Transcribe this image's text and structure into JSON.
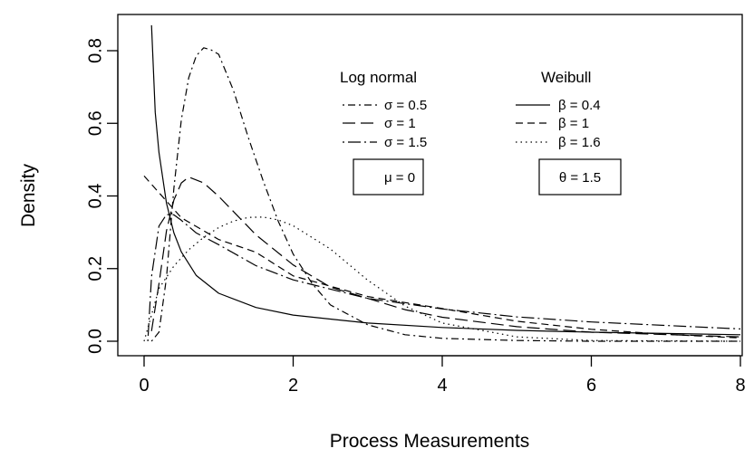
{
  "chart_data": {
    "type": "line",
    "xlabel": "Process Measurements",
    "ylabel": "Density",
    "xlim": [
      0,
      8
    ],
    "ylim": [
      0,
      0.85
    ],
    "xticks": [
      "0",
      "2",
      "4",
      "6",
      "8"
    ],
    "yticks": [
      "0.0",
      "0.2",
      "0.4",
      "0.6",
      "0.8"
    ],
    "grid": false,
    "legends": {
      "lognormal": {
        "title": "Log normal",
        "entries": [
          "σ = 0.5",
          "σ = 1",
          "σ = 1.5"
        ],
        "param_box": "μ = 0"
      },
      "weibull": {
        "title": "Weibull",
        "entries": [
          "β = 0.4",
          "β = 1",
          "β = 1.6"
        ],
        "param_box": "θ = 1.5"
      }
    },
    "series": [
      {
        "family": "lognormal",
        "dash": "dot-dash",
        "x": [
          0.1,
          0.2,
          0.3,
          0.4,
          0.5,
          0.6,
          0.7,
          0.8,
          0.9,
          1.0,
          1.2,
          1.4,
          1.6,
          1.8,
          2.0,
          2.25,
          2.5,
          3.0,
          3.5,
          4.0,
          5.0,
          6.0,
          8.0
        ],
        "y": [
          0.0,
          0.025,
          0.175,
          0.422,
          0.61,
          0.726,
          0.786,
          0.808,
          0.802,
          0.79,
          0.69,
          0.56,
          0.44,
          0.33,
          0.24,
          0.16,
          0.1,
          0.045,
          0.018,
          0.008,
          0.002,
          0.0,
          0.0
        ]
      },
      {
        "family": "lognormal",
        "dash": "long-dash",
        "x": [
          0.1,
          0.2,
          0.3,
          0.4,
          0.5,
          0.6,
          0.8,
          1.0,
          1.2,
          1.5,
          2.0,
          2.5,
          3.0,
          3.5,
          4.0,
          5.0,
          6.0,
          8.0
        ],
        "y": [
          0.028,
          0.158,
          0.304,
          0.389,
          0.436,
          0.452,
          0.436,
          0.399,
          0.357,
          0.293,
          0.21,
          0.149,
          0.118,
          0.087,
          0.066,
          0.04,
          0.025,
          0.012
        ]
      },
      {
        "family": "lognormal",
        "dash": "dot-long-dash",
        "x": [
          0.05,
          0.1,
          0.2,
          0.3,
          0.4,
          0.5,
          0.7,
          1.0,
          1.5,
          2.0,
          3.0,
          4.0,
          5.0,
          6.0,
          8.0
        ],
        "y": [
          0.0,
          0.178,
          0.317,
          0.349,
          0.348,
          0.333,
          0.298,
          0.266,
          0.208,
          0.169,
          0.118,
          0.089,
          0.067,
          0.053,
          0.034
        ]
      },
      {
        "family": "weibull",
        "dash": "solid",
        "x": [
          0.1,
          0.15,
          0.2,
          0.3,
          0.4,
          0.5,
          0.7,
          1.0,
          1.5,
          2.0,
          3.0,
          4.0,
          5.0,
          6.0,
          8.0
        ],
        "y": [
          0.87,
          0.63,
          0.52,
          0.38,
          0.298,
          0.246,
          0.181,
          0.132,
          0.093,
          0.072,
          0.05,
          0.038,
          0.03,
          0.025,
          0.018
        ]
      },
      {
        "family": "weibull",
        "dash": "dashed",
        "x": [
          0.0,
          0.5,
          1.0,
          1.5,
          2.0,
          3.0,
          4.0,
          5.0,
          6.0,
          7.0,
          8.0
        ],
        "y": [
          0.455,
          0.34,
          0.28,
          0.245,
          0.18,
          0.123,
          0.09,
          0.055,
          0.033,
          0.019,
          0.009
        ]
      },
      {
        "family": "weibull",
        "dash": "dotted",
        "x": [
          0.0,
          0.2,
          0.4,
          0.6,
          0.8,
          1.0,
          1.2,
          1.4,
          1.6,
          1.8,
          2.0,
          2.5,
          3.0,
          3.5,
          4.0,
          5.0,
          6.0,
          8.0
        ],
        "y": [
          0.0,
          0.145,
          0.207,
          0.252,
          0.286,
          0.313,
          0.331,
          0.341,
          0.342,
          0.334,
          0.318,
          0.254,
          0.168,
          0.097,
          0.05,
          0.012,
          0.002,
          0.0
        ]
      }
    ]
  }
}
